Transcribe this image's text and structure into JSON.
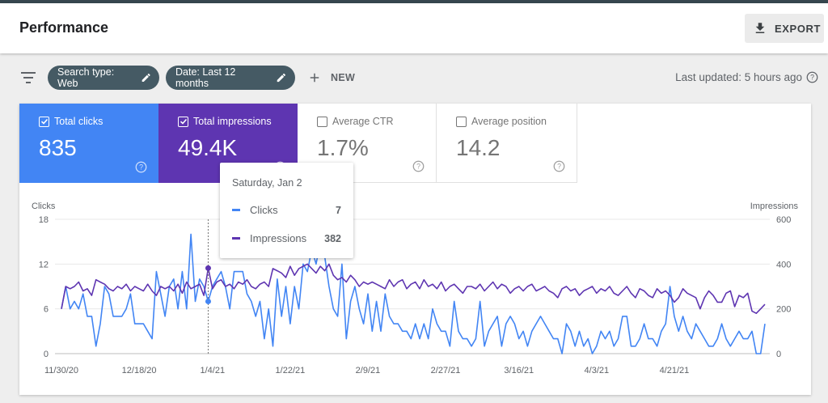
{
  "header": {
    "title": "Performance",
    "export_label": "EXPORT"
  },
  "filters": {
    "search_type_label": "Search type: Web",
    "date_label": "Date: Last 12 months",
    "new_label": "NEW",
    "last_updated": "Last updated: 5 hours ago"
  },
  "metrics": [
    {
      "label": "Total clicks",
      "value": "835",
      "checked": true
    },
    {
      "label": "Total impressions",
      "value": "49.4K",
      "checked": true
    },
    {
      "label": "Average CTR",
      "value": "1.7%",
      "checked": false
    },
    {
      "label": "Average position",
      "value": "14.2",
      "checked": false
    }
  ],
  "tooltip": {
    "date": "Saturday, Jan 2",
    "rows": [
      {
        "name": "Clicks",
        "value": "7"
      },
      {
        "name": "Impressions",
        "value": "382"
      }
    ]
  },
  "colors": {
    "clicks": "#4285f4",
    "impressions": "#5e35b1",
    "accent": "#455a64"
  },
  "chart_data": {
    "type": "line",
    "left_axis_label": "Clicks",
    "right_axis_label": "Impressions",
    "left_ticks": [
      "0",
      "6",
      "12",
      "18"
    ],
    "right_ticks": [
      "0",
      "200",
      "400",
      "600"
    ],
    "left_range": [
      0,
      18
    ],
    "right_range": [
      0,
      600
    ],
    "x_ticks": [
      "11/30/20",
      "12/18/20",
      "1/4/21",
      "1/22/21",
      "2/9/21",
      "2/27/21",
      "3/16/21",
      "4/3/21",
      "4/21/21"
    ],
    "x_tick_index": [
      0,
      18,
      35,
      53,
      71,
      89,
      106,
      124,
      142
    ],
    "hover_index": 34,
    "grid": true,
    "series": [
      {
        "name": "Clicks",
        "axis": "left",
        "values": [
          6,
          9,
          6,
          7,
          6,
          8,
          5,
          5,
          1,
          4,
          9,
          8,
          5,
          5,
          5,
          6,
          8,
          4,
          4,
          4,
          3,
          2,
          11,
          8,
          5,
          9,
          10,
          6,
          11,
          6,
          16,
          7,
          10,
          9,
          7,
          9,
          10,
          11,
          9,
          6,
          11,
          11,
          11,
          8,
          7,
          5,
          7,
          2,
          6,
          1,
          10,
          5,
          9,
          4,
          9,
          6,
          12,
          11,
          14,
          12,
          15,
          13,
          9,
          6,
          5,
          12,
          2,
          7,
          9,
          6,
          4,
          8,
          3,
          7,
          3,
          8,
          5,
          4,
          4,
          3,
          3,
          2,
          4,
          2,
          4,
          2,
          6,
          4,
          3,
          3,
          1,
          7,
          3,
          2,
          2,
          1,
          2,
          7,
          1,
          3,
          4,
          5,
          1,
          4,
          5,
          4,
          2,
          3,
          1,
          3,
          4,
          5,
          4,
          3,
          2,
          2,
          0,
          4,
          3,
          1,
          3,
          1,
          2,
          0,
          1,
          3,
          2,
          3,
          1,
          2,
          5,
          5,
          1,
          1,
          2,
          4,
          2,
          2,
          1,
          3,
          4,
          9,
          5,
          3,
          5,
          3,
          2,
          4,
          3,
          2,
          1,
          1,
          2,
          4,
          2,
          1,
          2,
          3,
          2,
          2,
          3,
          0,
          0,
          4
        ]
      },
      {
        "name": "Impressions",
        "axis": "right",
        "values": [
          200,
          300,
          290,
          300,
          320,
          280,
          290,
          260,
          330,
          320,
          310,
          290,
          280,
          300,
          290,
          310,
          280,
          300,
          290,
          280,
          310,
          280,
          260,
          300,
          290,
          300,
          280,
          310,
          270,
          320,
          290,
          300,
          310,
          260,
          382,
          290,
          320,
          330,
          300,
          310,
          290,
          320,
          310,
          330,
          300,
          290,
          310,
          320,
          300,
          380,
          370,
          360,
          340,
          390,
          350,
          380,
          390,
          400,
          380,
          360,
          390,
          370,
          400,
          350,
          330,
          340,
          320,
          350,
          330,
          300,
          320,
          310,
          320,
          310,
          300,
          290,
          330,
          300,
          320,
          330,
          290,
          310,
          320,
          290,
          330,
          300,
          310,
          290,
          320,
          280,
          300,
          310,
          290,
          270,
          300,
          300,
          290,
          310,
          280,
          300,
          320,
          290,
          310,
          300,
          270,
          290,
          300,
          280,
          300,
          310,
          280,
          290,
          300,
          280,
          270,
          250,
          290,
          300,
          280,
          290,
          260,
          280,
          290,
          300,
          270,
          290,
          280,
          300,
          270,
          260,
          280,
          300,
          270,
          250,
          290,
          280,
          260,
          250,
          290,
          270,
          280,
          260,
          230,
          250,
          290,
          270,
          260,
          250,
          200,
          250,
          280,
          260,
          230,
          230,
          270,
          280,
          210,
          260,
          250,
          270,
          190,
          180,
          200,
          220
        ]
      }
    ]
  }
}
